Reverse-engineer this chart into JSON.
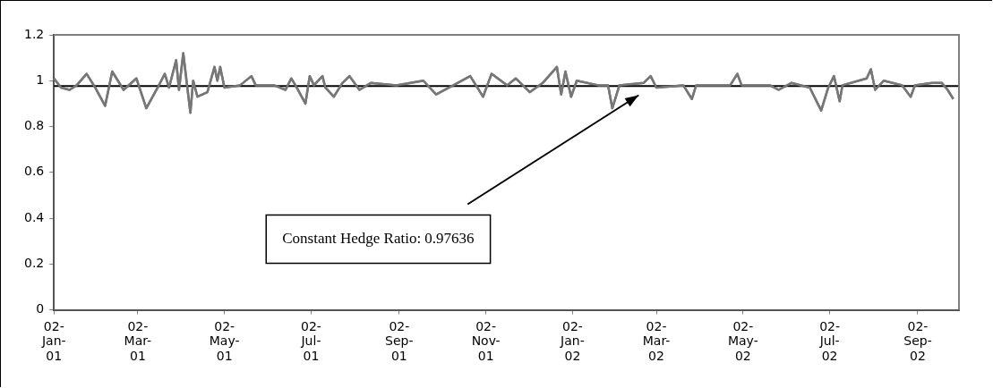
{
  "chart_data": {
    "type": "line",
    "xlim": [
      "2001-01-02",
      "2002-10-01"
    ],
    "xticks": [
      {
        "value": "2001-01-02",
        "label": "02-Jan-01"
      },
      {
        "value": "2001-03-02",
        "label": "02-Mar-01"
      },
      {
        "value": "2001-05-02",
        "label": "02-May-01"
      },
      {
        "value": "2001-07-02",
        "label": "02-Jul-01"
      },
      {
        "value": "2001-09-02",
        "label": "02-Sep-01"
      },
      {
        "value": "2001-11-02",
        "label": "02-Nov-01"
      },
      {
        "value": "2002-01-02",
        "label": "02-Jan-02"
      },
      {
        "value": "2002-03-02",
        "label": "02-Mar-02"
      },
      {
        "value": "2002-05-02",
        "label": "02-May-02"
      },
      {
        "value": "2002-07-02",
        "label": "02-Jul-02"
      },
      {
        "value": "2002-09-02",
        "label": "02-Sep-02"
      }
    ],
    "ylim": [
      0,
      1.2
    ],
    "yticks": [
      0,
      0.2,
      0.4,
      0.6,
      0.8,
      1,
      1.2
    ],
    "grid": false,
    "legend": false,
    "marker": "none",
    "line_style": "solid",
    "series": [
      {
        "color": "#777777",
        "x": [
          "2001-01-02",
          "2001-01-07",
          "2001-01-13",
          "2001-01-18",
          "2001-01-25",
          "2001-01-31",
          "2001-02-07",
          "2001-02-12",
          "2001-02-20",
          "2001-03-01",
          "2001-03-08",
          "2001-03-16",
          "2001-03-21",
          "2001-03-24",
          "2001-03-29",
          "2001-03-31",
          "2001-04-03",
          "2001-04-08",
          "2001-04-10",
          "2001-04-13",
          "2001-04-20",
          "2001-04-25",
          "2001-04-27",
          "2001-04-29",
          "2001-05-02",
          "2001-05-13",
          "2001-05-21",
          "2001-05-24",
          "2001-06-06",
          "2001-06-14",
          "2001-06-18",
          "2001-06-21",
          "2001-06-28",
          "2001-07-01",
          "2001-07-04",
          "2001-07-10",
          "2001-07-12",
          "2001-07-18",
          "2001-07-24",
          "2001-07-29",
          "2001-08-05",
          "2001-08-13",
          "2001-08-31",
          "2001-09-19",
          "2001-09-28",
          "2001-10-13",
          "2001-10-22",
          "2001-10-31",
          "2001-11-06",
          "2001-11-17",
          "2001-11-23",
          "2001-12-03",
          "2001-12-12",
          "2001-12-22",
          "2001-12-25",
          "2001-12-28",
          "2002-01-01",
          "2002-01-05",
          "2002-01-20",
          "2002-01-27",
          "2002-01-30",
          "2002-02-04",
          "2002-02-21",
          "2002-02-26",
          "2002-03-02",
          "2002-03-21",
          "2002-03-27",
          "2002-03-30",
          "2002-04-23",
          "2002-04-28",
          "2002-05-01",
          "2002-05-21",
          "2002-05-27",
          "2002-06-05",
          "2002-06-18",
          "2002-06-26",
          "2002-07-01",
          "2002-07-05",
          "2002-07-09",
          "2002-07-11",
          "2002-07-28",
          "2002-07-31",
          "2002-08-03",
          "2002-08-09",
          "2002-08-22",
          "2002-08-28",
          "2002-08-31",
          "2002-09-12",
          "2002-09-19",
          "2002-09-23",
          "2002-09-27"
        ],
        "values": [
          1.01,
          0.97,
          0.96,
          0.98,
          1.03,
          0.97,
          0.89,
          1.04,
          0.96,
          1.01,
          0.88,
          0.97,
          1.03,
          0.97,
          1.09,
          0.96,
          1.12,
          0.86,
          1.0,
          0.93,
          0.95,
          1.06,
          1.0,
          1.06,
          0.97,
          0.98,
          1.02,
          0.98,
          0.98,
          0.96,
          1.01,
          0.98,
          0.9,
          1.02,
          0.98,
          1.02,
          0.97,
          0.93,
          0.99,
          1.02,
          0.96,
          0.99,
          0.98,
          1.0,
          0.94,
          0.99,
          1.02,
          0.93,
          1.03,
          0.98,
          1.01,
          0.95,
          0.99,
          1.06,
          0.94,
          1.04,
          0.93,
          1.0,
          0.98,
          0.98,
          0.88,
          0.98,
          0.99,
          1.02,
          0.97,
          0.98,
          0.92,
          0.98,
          0.98,
          1.03,
          0.98,
          0.98,
          0.96,
          0.99,
          0.97,
          0.87,
          0.97,
          1.02,
          0.91,
          0.98,
          1.01,
          1.05,
          0.96,
          1.0,
          0.98,
          0.93,
          0.98,
          0.99,
          0.99,
          0.96,
          0.92
        ]
      }
    ],
    "ref_lines": [
      {
        "axis": "y",
        "value": 0.97636,
        "color": "#000000"
      }
    ],
    "annotations": [
      "Constant Hedge Ratio: 0.97636"
    ]
  }
}
